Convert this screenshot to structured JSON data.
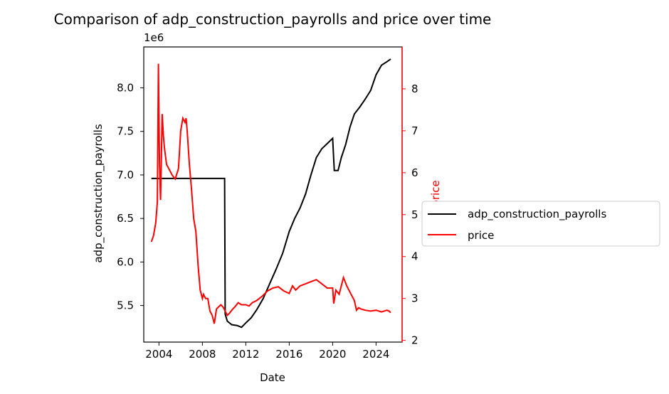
{
  "chart_data": {
    "type": "line",
    "title": "Comparison of adp_construction_payrolls and price over time",
    "xlabel": "Date",
    "ylabel_left": "adp_construction_payrolls",
    "ylabel_right": "price",
    "left_axis_offset_label": "1e6",
    "xlim": [
      2002.6,
      2026.4
    ],
    "ylim_left": [
      5.08,
      8.47
    ],
    "ylim_right": [
      1.96,
      9.0
    ],
    "x_ticks": [
      2004,
      2008,
      2012,
      2016,
      2020,
      2024
    ],
    "x_tick_labels": [
      "2004",
      "2008",
      "2012",
      "2016",
      "2020",
      "2024"
    ],
    "y_left_ticks": [
      5.5,
      6.0,
      6.5,
      7.0,
      7.5,
      8.0
    ],
    "y_left_tick_labels": [
      "5.5",
      "6.0",
      "6.5",
      "7.0",
      "7.5",
      "8.0"
    ],
    "y_right_ticks": [
      2,
      3,
      4,
      5,
      6,
      7,
      8
    ],
    "y_right_tick_labels": [
      "2",
      "3",
      "4",
      "5",
      "6",
      "7",
      "8"
    ],
    "legend": {
      "placement": "outside-right",
      "entries": [
        "adp_construction_payrolls",
        "price"
      ]
    },
    "series": [
      {
        "name": "adp_construction_payrolls",
        "axis": "left",
        "color": "#000000",
        "x": [
          2003.3,
          2010.05,
          2010.1,
          2010.3,
          2010.7,
          2011.2,
          2011.6,
          2012.0,
          2012.5,
          2013.0,
          2013.6,
          2014.2,
          2014.8,
          2015.4,
          2016.0,
          2016.5,
          2017.0,
          2017.5,
          2018.0,
          2018.5,
          2019.0,
          2019.5,
          2020.0,
          2020.15,
          2020.25,
          2020.5,
          2020.8,
          2021.2,
          2021.6,
          2022.0,
          2022.5,
          2023.0,
          2023.5,
          2024.0,
          2024.5,
          2025.0,
          2025.35
        ],
        "y": [
          6.96,
          6.96,
          5.4,
          5.32,
          5.28,
          5.27,
          5.25,
          5.3,
          5.36,
          5.45,
          5.58,
          5.75,
          5.92,
          6.1,
          6.35,
          6.5,
          6.62,
          6.78,
          7.0,
          7.2,
          7.3,
          7.36,
          7.42,
          7.05,
          7.05,
          7.05,
          7.2,
          7.35,
          7.55,
          7.7,
          7.78,
          7.87,
          7.97,
          8.15,
          8.26,
          8.3,
          8.33
        ]
      },
      {
        "name": "price",
        "axis": "right",
        "color": "#ff0000",
        "x": [
          2003.3,
          2003.5,
          2003.7,
          2003.85,
          2003.95,
          2004.05,
          2004.15,
          2004.3,
          2004.4,
          2004.5,
          2004.7,
          2004.9,
          2005.2,
          2005.5,
          2005.8,
          2006.0,
          2006.2,
          2006.4,
          2006.5,
          2006.6,
          2006.8,
          2007.0,
          2007.2,
          2007.4,
          2007.6,
          2007.8,
          2008.0,
          2008.1,
          2008.3,
          2008.5,
          2008.7,
          2008.9,
          2009.1,
          2009.3,
          2009.5,
          2009.7,
          2009.9,
          2010.1,
          2010.3,
          2010.5,
          2010.8,
          2011.0,
          2011.3,
          2011.6,
          2012.0,
          2012.3,
          2012.6,
          2013.0,
          2013.5,
          2014.0,
          2014.5,
          2015.0,
          2015.5,
          2016.0,
          2016.3,
          2016.6,
          2017.0,
          2017.5,
          2018.0,
          2018.5,
          2019.0,
          2019.5,
          2020.0,
          2020.1,
          2020.3,
          2020.6,
          2021.0,
          2021.3,
          2021.6,
          2022.0,
          2022.2,
          2022.4,
          2022.6,
          2023.0,
          2023.5,
          2024.0,
          2024.5,
          2025.0,
          2025.2,
          2025.35
        ],
        "y": [
          4.35,
          4.5,
          4.8,
          5.3,
          8.6,
          6.2,
          5.35,
          7.4,
          6.9,
          6.6,
          6.2,
          6.1,
          5.95,
          5.85,
          6.1,
          7.0,
          7.3,
          7.2,
          7.3,
          7.0,
          6.2,
          5.6,
          4.9,
          4.6,
          3.8,
          3.2,
          3.0,
          3.1,
          3.0,
          3.0,
          2.7,
          2.6,
          2.4,
          2.75,
          2.8,
          2.85,
          2.8,
          2.7,
          2.6,
          2.65,
          2.75,
          2.8,
          2.9,
          2.85,
          2.85,
          2.82,
          2.9,
          2.95,
          3.05,
          3.18,
          3.25,
          3.28,
          3.18,
          3.12,
          3.3,
          3.2,
          3.3,
          3.35,
          3.4,
          3.45,
          3.35,
          3.25,
          3.25,
          2.88,
          3.2,
          3.1,
          3.5,
          3.3,
          3.15,
          2.95,
          2.72,
          2.78,
          2.75,
          2.72,
          2.7,
          2.72,
          2.68,
          2.72,
          2.7,
          2.66
        ]
      }
    ]
  }
}
